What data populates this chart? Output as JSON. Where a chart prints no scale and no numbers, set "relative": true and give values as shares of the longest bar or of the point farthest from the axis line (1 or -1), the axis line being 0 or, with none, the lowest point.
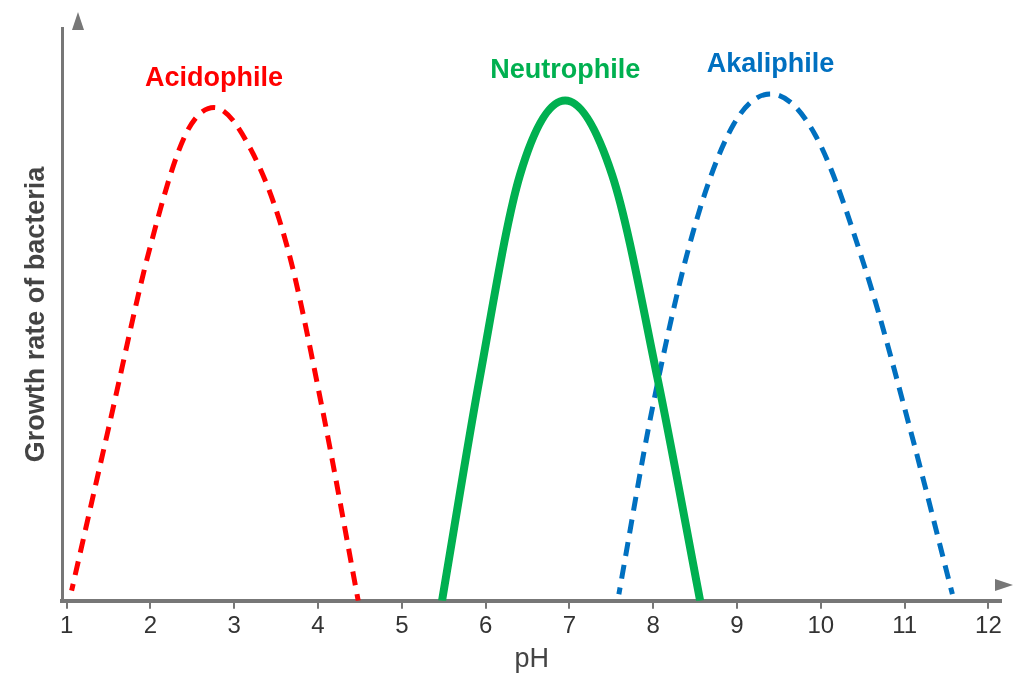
{
  "chart_data": {
    "type": "line",
    "relative": true,
    "xlabel": "pH",
    "ylabel": "Growth rate of bacteria",
    "xlim": [
      0.95,
      12.15
    ],
    "xticks": [
      1,
      2,
      3,
      4,
      5,
      6,
      7,
      8,
      9,
      10,
      11,
      12
    ],
    "grid": false,
    "legend": false,
    "marker": "none",
    "series": [
      {
        "name": "Acidophile",
        "color": "#ff0000",
        "line_style": "dashed",
        "x": [
          1.06,
          1.5,
          2.0,
          2.42,
          2.76,
          3.2,
          3.63,
          4.05,
          4.48
        ],
        "values": [
          0.02,
          0.34,
          0.7,
          0.92,
          0.973,
          0.89,
          0.7,
          0.38,
          0
        ]
      },
      {
        "name": "Neutrophile",
        "color": "#00b050",
        "line_style": "solid",
        "x": [
          5.48,
          5.93,
          6.41,
          6.95,
          7.51,
          8.05,
          8.56
        ],
        "values": [
          0,
          0.44,
          0.84,
          0.987,
          0.84,
          0.44,
          0
        ]
      },
      {
        "name": "Akaliphile",
        "color": "#0070c0",
        "line_style": "dashed",
        "x": [
          7.59,
          7.99,
          8.48,
          8.96,
          9.4,
          9.93,
          10.54,
          11.08,
          11.57
        ],
        "values": [
          0.013,
          0.38,
          0.73,
          0.94,
          1,
          0.92,
          0.65,
          0.33,
          0.013
        ]
      }
    ]
  }
}
